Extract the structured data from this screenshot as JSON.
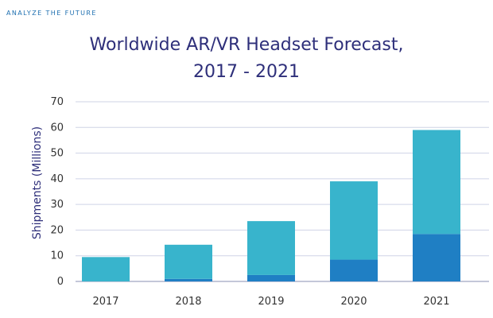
{
  "brand": "ANALYZE THE FUTURE",
  "colors": {
    "series_upper": "#38b4cc",
    "series_lower": "#1f7fc4",
    "grid": "#cfd3e6",
    "axis": "#8a8fb3"
  },
  "chart_data": {
    "type": "bar",
    "stacked": true,
    "title": "Worldwide AR/VR Headset Forecast,",
    "subtitle": "2017 - 2021",
    "xlabel": "",
    "ylabel": "Shipments (Millions)",
    "ylim": [
      0,
      70
    ],
    "yticks": [
      0,
      10,
      20,
      30,
      40,
      50,
      60,
      70
    ],
    "grid": true,
    "categories": [
      "2017",
      "2018",
      "2019",
      "2020",
      "2021"
    ],
    "series": [
      {
        "values": [
          0,
          1,
          2.5,
          8.5,
          18.5
        ]
      },
      {
        "values": [
          9.5,
          13.3,
          21.0,
          30.5,
          40.5
        ]
      }
    ]
  }
}
